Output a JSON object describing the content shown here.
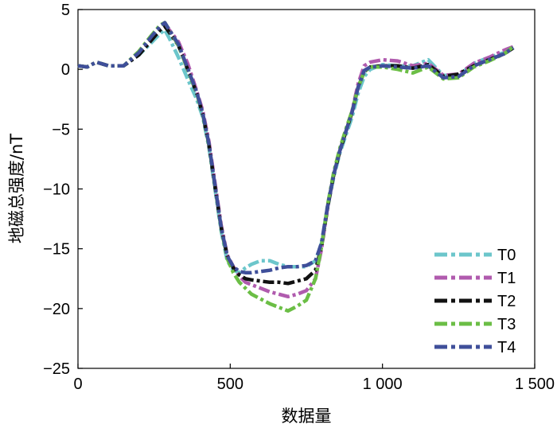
{
  "chart_data": {
    "type": "line",
    "title": "",
    "xlabel": "数据量",
    "ylabel": "地磁总强度/nT",
    "xlim": [
      0,
      1500
    ],
    "ylim": [
      -25,
      5
    ],
    "xticks": [
      0,
      500,
      1000,
      1500
    ],
    "xtick_labels": [
      "0",
      "500",
      "1 000",
      "1 500"
    ],
    "yticks": [
      5,
      0,
      -5,
      -10,
      -15,
      -20,
      -25
    ],
    "ytick_labels": [
      "5",
      "0",
      "−5",
      "−10",
      "−15",
      "−20",
      "−25"
    ],
    "grid": false,
    "legend_position": "bottom-right",
    "line_style": "dash-dot",
    "x": [
      0,
      30,
      60,
      100,
      150,
      200,
      240,
      270,
      285,
      300,
      330,
      360,
      390,
      410,
      430,
      450,
      470,
      490,
      510,
      530,
      550,
      570,
      600,
      630,
      660,
      690,
      720,
      750,
      780,
      800,
      820,
      840,
      860,
      880,
      900,
      920,
      940,
      960,
      1000,
      1050,
      1100,
      1150,
      1200,
      1250,
      1300,
      1350,
      1400,
      1430
    ],
    "series": [
      {
        "name": "T0",
        "color": "#6CC6CB",
        "values": [
          0.3,
          0.2,
          0.6,
          0.3,
          0.3,
          1.2,
          2.2,
          3.0,
          3.3,
          2.6,
          1.0,
          -0.8,
          -2.5,
          -4.0,
          -6.5,
          -10.0,
          -13.5,
          -16.0,
          -16.8,
          -17.0,
          -16.6,
          -16.3,
          -16.0,
          -16.0,
          -16.3,
          -16.5,
          -16.5,
          -16.5,
          -16.0,
          -14.5,
          -11.5,
          -9.0,
          -7.0,
          -5.5,
          -4.0,
          -2.0,
          -0.6,
          0.0,
          0.4,
          0.3,
          0.3,
          0.8,
          -0.5,
          -0.5,
          0.5,
          1.0,
          1.4,
          1.8
        ]
      },
      {
        "name": "T1",
        "color": "#B05BAE",
        "values": [
          0.3,
          0.2,
          0.6,
          0.3,
          0.3,
          1.3,
          2.5,
          3.4,
          3.6,
          3.3,
          2.3,
          0.5,
          -1.8,
          -3.5,
          -6.0,
          -9.5,
          -13.0,
          -15.5,
          -16.5,
          -17.3,
          -17.8,
          -18.0,
          -18.3,
          -18.6,
          -18.8,
          -19.0,
          -18.8,
          -18.5,
          -17.5,
          -15.0,
          -11.5,
          -8.8,
          -6.8,
          -5.2,
          -3.5,
          -1.2,
          0.3,
          0.6,
          0.8,
          0.7,
          0.3,
          0.5,
          -0.5,
          -0.4,
          0.5,
          1.0,
          1.6,
          1.9
        ]
      },
      {
        "name": "T2",
        "color": "#111111",
        "values": [
          0.3,
          0.2,
          0.6,
          0.3,
          0.3,
          1.2,
          2.4,
          3.3,
          3.6,
          3.1,
          2.0,
          0.0,
          -2.0,
          -3.8,
          -6.3,
          -9.8,
          -13.2,
          -15.6,
          -16.6,
          -17.2,
          -17.5,
          -17.6,
          -17.7,
          -17.8,
          -17.8,
          -17.9,
          -17.7,
          -17.5,
          -16.8,
          -14.8,
          -11.5,
          -8.8,
          -6.8,
          -5.2,
          -3.6,
          -1.5,
          -0.2,
          0.2,
          0.3,
          0.3,
          0.1,
          0.4,
          -0.6,
          -0.4,
          0.3,
          0.8,
          1.3,
          1.8
        ]
      },
      {
        "name": "T3",
        "color": "#6BBE45",
        "values": [
          0.3,
          0.2,
          0.6,
          0.3,
          0.3,
          1.5,
          2.8,
          3.7,
          3.9,
          3.3,
          2.0,
          0.0,
          -2.0,
          -3.8,
          -6.3,
          -9.8,
          -13.3,
          -15.8,
          -17.0,
          -17.8,
          -18.3,
          -18.8,
          -19.2,
          -19.6,
          -19.9,
          -20.2,
          -19.8,
          -19.3,
          -17.5,
          -14.8,
          -11.3,
          -8.6,
          -6.6,
          -5.0,
          -3.5,
          -1.5,
          -0.2,
          0.2,
          0.2,
          0.0,
          -0.3,
          0.2,
          -0.8,
          -0.7,
          0.2,
          0.7,
          1.3,
          1.9
        ]
      },
      {
        "name": "T4",
        "color": "#3F4F9A",
        "values": [
          0.3,
          0.2,
          0.6,
          0.3,
          0.3,
          1.4,
          2.7,
          3.6,
          3.9,
          3.3,
          2.1,
          0.1,
          -1.9,
          -3.7,
          -6.2,
          -9.7,
          -13.2,
          -15.6,
          -16.5,
          -16.9,
          -17.0,
          -17.0,
          -16.9,
          -16.8,
          -16.6,
          -16.5,
          -16.5,
          -16.4,
          -16.0,
          -14.5,
          -11.4,
          -8.8,
          -6.8,
          -5.2,
          -3.6,
          -1.5,
          -0.1,
          0.2,
          0.3,
          0.2,
          0.1,
          0.3,
          -0.7,
          -0.6,
          0.3,
          0.8,
          1.3,
          1.8
        ]
      }
    ]
  }
}
